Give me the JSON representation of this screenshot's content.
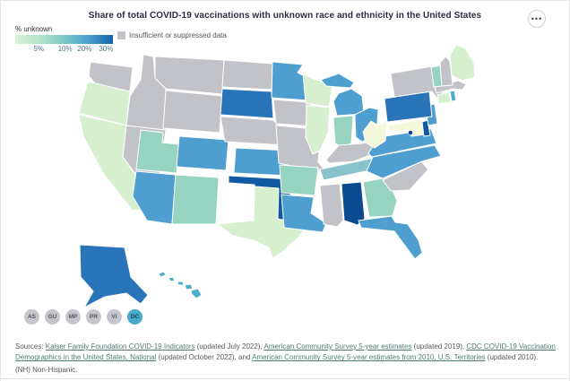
{
  "header": {
    "title": "Share of total COVID-19 vaccinations with unknown race and ethnicity in the United States",
    "menu_icon_glyph": "•••"
  },
  "legend": {
    "label": "% unknown",
    "gradient_stops": [
      "#d9efd2",
      "#b4e3c9",
      "#7ccac7",
      "#4b9fd0",
      "#1264aa"
    ],
    "ticks": [
      {
        "label": "5%",
        "pct": 24
      },
      {
        "label": "10%",
        "pct": 51
      },
      {
        "label": "20%",
        "pct": 71
      },
      {
        "label": "30%",
        "pct": 93
      }
    ],
    "insufficient_label": "Insufficient or suppressed data",
    "insufficient_color": "#c2c3c9"
  },
  "map": {
    "palette": {
      "grey": "#c2c3c8",
      "green1": "#d6efce",
      "cream": "#f3f8db",
      "green2": "#96d4c1",
      "tealmuted": "#8ac2cb",
      "teal": "#4badc9",
      "blue": "#4e9fd0",
      "blue2": "#2a75b9",
      "blue3": "#1059a3",
      "navy": "#0a4a90"
    },
    "states": {
      "AL": "navy",
      "AK": "blue2",
      "AZ": "blue",
      "AR": "green2",
      "CA": "green1",
      "CO": "blue",
      "CT": "green1",
      "DE": "blue3",
      "FL": "blue",
      "GA": "green2",
      "HI": "teal",
      "ID": "grey",
      "IL": "green1",
      "IN": "green2",
      "IA": "grey",
      "KS": "blue",
      "KY": "grey",
      "LA": "blue",
      "ME": "green1",
      "MD": "cream",
      "MA": "grey",
      "MI": "blue",
      "MN": "blue",
      "MS": "grey",
      "MO": "grey",
      "MT": "grey",
      "NE": "grey",
      "NV": "grey",
      "NH": "grey",
      "NJ": "blue",
      "NM": "green2",
      "NY": "grey",
      "NC": "blue",
      "ND": "grey",
      "OH": "blue",
      "OK": "blue3",
      "OR": "green1",
      "PA": "blue2",
      "RI": "teal",
      "SC": "grey",
      "SD": "blue2",
      "TN": "tealmuted",
      "TX": "green1",
      "UT": "green2",
      "VT": "green2",
      "VA": "blue",
      "WA": "grey",
      "WV": "cream",
      "WI": "green1",
      "WY": "grey",
      "DC": "navy"
    }
  },
  "territories": {
    "active_color": "#4aa9c9",
    "buttons": [
      {
        "label": "AS",
        "active": false
      },
      {
        "label": "GU",
        "active": false
      },
      {
        "label": "MP",
        "active": false
      },
      {
        "label": "PR",
        "active": false
      },
      {
        "label": "VI",
        "active": false
      },
      {
        "label": "DC",
        "active": true
      }
    ]
  },
  "sources": {
    "segments": [
      {
        "text": "Sources: "
      },
      {
        "text": "Kaiser Family Foundation COVID-19 Indicators",
        "link": true
      },
      {
        "text": " (updated July 2022), "
      },
      {
        "text": "American Community Survey 5-year estimates",
        "link": true
      },
      {
        "text": " (updated 2019), "
      },
      {
        "text": "CDC COVID-19 Vaccination Demographics in the United States, National",
        "link": true
      },
      {
        "text": " (updated October 2022), and "
      },
      {
        "text": "American Community Survey 5-year estimates from 2010, U.S. Territories",
        "link": true
      },
      {
        "text": " (updated 2010)."
      }
    ]
  },
  "footnote": "(NH) Non-Hispanic."
}
